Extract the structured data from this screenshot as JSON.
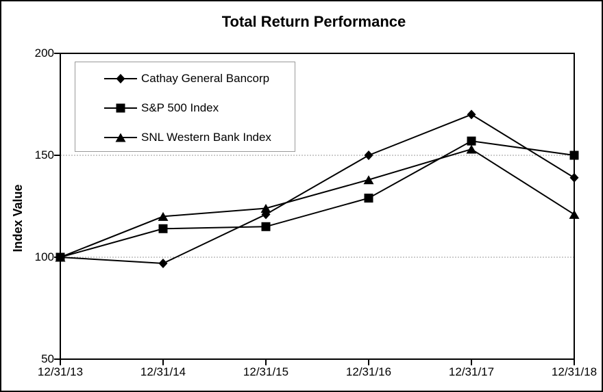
{
  "chart_data": {
    "type": "line",
    "title": "Total Return Performance",
    "ylabel": "Index Value",
    "xlabel": "",
    "categories": [
      "12/31/13",
      "12/31/14",
      "12/31/15",
      "12/31/16",
      "12/31/17",
      "12/31/18"
    ],
    "series": [
      {
        "name": "Cathay General Bancorp",
        "marker": "diamond",
        "values": [
          100,
          97,
          121,
          150,
          170,
          139
        ]
      },
      {
        "name": "S&P 500 Index",
        "marker": "square",
        "values": [
          100,
          114,
          115,
          129,
          157,
          150
        ]
      },
      {
        "name": "SNL Western Bank Index",
        "marker": "triangle",
        "values": [
          100,
          120,
          124,
          138,
          153,
          121
        ]
      }
    ],
    "ylim": [
      50,
      200
    ],
    "yticks": [
      200,
      150,
      100,
      50
    ],
    "grid_values": [
      150,
      100
    ],
    "grid_style": "dashed horizontal",
    "legend_position": "top-left inside plot",
    "line_color": "#000000",
    "marker_color": "#000000",
    "axis_color": "#000000",
    "grid_color": "#999999",
    "legend_border_color": "#999999",
    "text_color": "#000000"
  }
}
